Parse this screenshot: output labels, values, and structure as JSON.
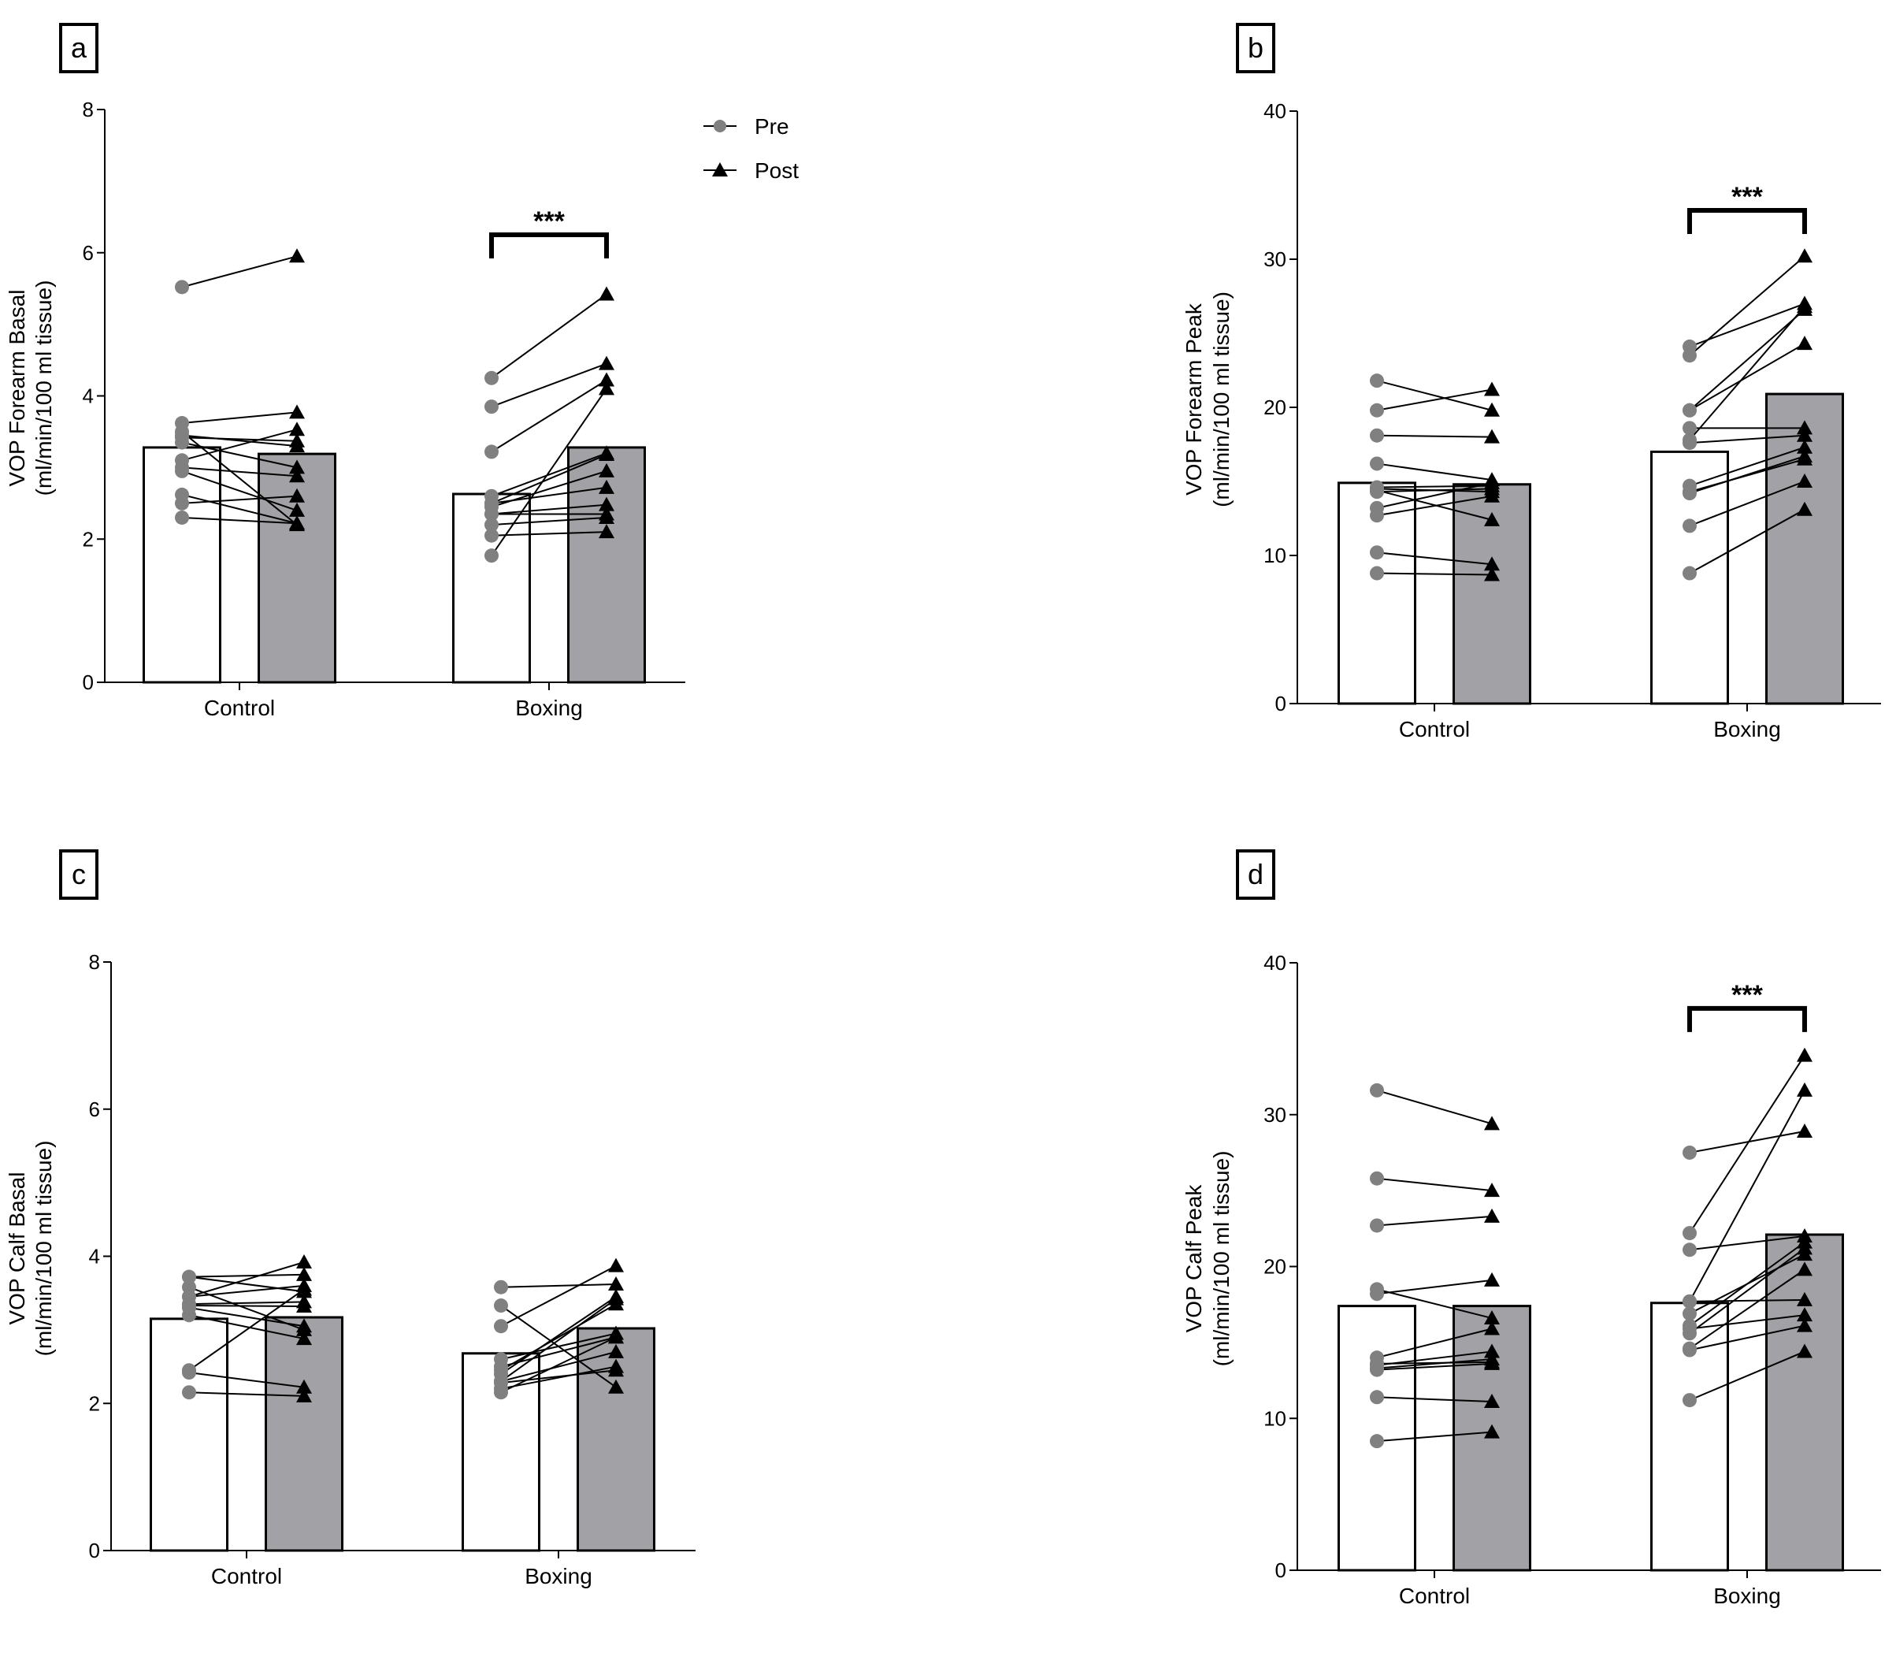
{
  "legend": {
    "placement": "top-right of panel a",
    "items": [
      {
        "label": "Pre",
        "marker": "circle",
        "color": "#808080"
      },
      {
        "label": "Post",
        "marker": "triangle",
        "color": "#000000"
      }
    ]
  },
  "colors": {
    "pre_bar": "#ffffff",
    "post_bar": "#a2a2a6",
    "pre_point": "#808080",
    "post_point": "#000000"
  },
  "chart_data": [
    {
      "panel": "a",
      "type": "bar",
      "ylabel": "VOP Forearm Basal",
      "ylabel2": "(ml/min/100 ml tissue)",
      "ylim": [
        0,
        8
      ],
      "yticks": [
        "0",
        "2",
        "4",
        "6",
        "8"
      ],
      "categories": [
        "Control",
        "Boxing"
      ],
      "bars": {
        "Pre": [
          3.28,
          2.63
        ],
        "Post": [
          3.19,
          3.28
        ]
      },
      "paired": [
        {
          "pre": [
            5.52,
            3.62,
            3.5,
            3.45,
            3.42,
            3.1,
            3.0,
            2.62,
            2.5,
            2.3,
            3.35,
            2.95
          ],
          "post": [
            5.95,
            3.77,
            2.2,
            3.3,
            3.37,
            3.53,
            2.88,
            2.22,
            2.6,
            2.22,
            3.0,
            2.4
          ]
        },
        {
          "pre": [
            4.25,
            3.85,
            3.22,
            2.6,
            2.5,
            2.45,
            2.35,
            2.35,
            2.2,
            2.05,
            1.77,
            2.5
          ],
          "post": [
            5.42,
            4.45,
            4.22,
            3.2,
            3.18,
            2.95,
            2.48,
            2.35,
            2.3,
            2.1,
            4.1,
            2.72
          ]
        }
      ],
      "significance": [
        {
          "category": "Boxing",
          "label": "***",
          "y": 6.25
        }
      ]
    },
    {
      "panel": "b",
      "type": "bar",
      "ylabel": "VOP Forearm Peak",
      "ylabel2": "(ml/min/100 ml tissue)",
      "ylim": [
        0,
        40
      ],
      "yticks": [
        "0",
        "10",
        "20",
        "30",
        "40"
      ],
      "categories": [
        "Control",
        "Boxing"
      ],
      "bars": {
        "Pre": [
          14.9,
          17.0
        ],
        "Post": [
          14.8,
          20.9
        ]
      },
      "paired": [
        {
          "pre": [
            21.8,
            19.8,
            18.1,
            16.2,
            14.6,
            14.4,
            13.2,
            12.7,
            10.2,
            8.8,
            14.5,
            14.3
          ],
          "post": [
            19.8,
            21.2,
            18.0,
            15.1,
            14.7,
            12.4,
            14.9,
            14.0,
            9.4,
            8.7,
            14.3,
            14.5
          ]
        },
        {
          "pre": [
            24.1,
            23.5,
            19.8,
            19.8,
            18.6,
            17.8,
            17.6,
            14.7,
            14.2,
            12.0,
            8.8,
            14.3
          ],
          "post": [
            27.0,
            30.2,
            26.6,
            24.3,
            18.6,
            26.8,
            18.1,
            17.3,
            16.7,
            15.0,
            13.1,
            16.5
          ]
        }
      ],
      "significance": [
        {
          "category": "Boxing",
          "label": "***",
          "y": 33.3
        }
      ]
    },
    {
      "panel": "c",
      "type": "bar",
      "ylabel": "VOP Calf Basal",
      "ylabel2": "(ml/min/100 ml tissue)",
      "ylim": [
        0,
        8
      ],
      "yticks": [
        "0",
        "2",
        "4",
        "6",
        "8"
      ],
      "categories": [
        "Control",
        "Boxing"
      ],
      "bars": {
        "Pre": [
          3.15,
          2.68
        ],
        "Post": [
          3.17,
          3.02
        ]
      },
      "paired": [
        {
          "pre": [
            3.72,
            3.72,
            3.58,
            3.45,
            3.35,
            3.33,
            3.2,
            2.45,
            2.42,
            2.15,
            3.3,
            3.45
          ],
          "post": [
            3.75,
            3.52,
            3.0,
            3.92,
            3.38,
            3.32,
            2.88,
            3.55,
            2.22,
            2.1,
            3.05,
            3.6
          ]
        },
        {
          "pre": [
            3.58,
            3.33,
            3.05,
            2.6,
            2.5,
            2.45,
            2.4,
            2.3,
            2.28,
            2.2,
            2.15,
            2.3
          ],
          "post": [
            3.62,
            2.22,
            3.87,
            2.95,
            2.9,
            3.35,
            3.45,
            2.7,
            2.45,
            2.5,
            2.9,
            3.42
          ]
        }
      ],
      "significance": []
    },
    {
      "panel": "d",
      "type": "bar",
      "ylabel": "VOP Calf Peak",
      "ylabel2": "(ml/min/100 ml tissue)",
      "ylim": [
        0,
        40
      ],
      "yticks": [
        "0",
        "10",
        "20",
        "30",
        "40"
      ],
      "categories": [
        "Control",
        "Boxing"
      ],
      "bars": {
        "Pre": [
          17.4,
          17.6
        ],
        "Post": [
          17.4,
          22.1
        ]
      },
      "paired": [
        {
          "pre": [
            31.6,
            25.8,
            22.7,
            18.5,
            18.2,
            14.0,
            13.5,
            13.3,
            13.2,
            11.4,
            8.5,
            13.6
          ],
          "post": [
            29.4,
            25.0,
            23.3,
            16.6,
            19.1,
            15.9,
            14.4,
            13.9,
            13.6,
            11.1,
            9.1,
            13.7
          ]
        },
        {
          "pre": [
            27.5,
            22.2,
            21.1,
            17.7,
            17.7,
            16.9,
            16.1,
            15.9,
            15.6,
            14.6,
            14.5,
            11.2
          ],
          "post": [
            28.9,
            33.9,
            22.0,
            31.6,
            17.8,
            20.8,
            21.6,
            16.8,
            21.2,
            19.8,
            16.1,
            14.4
          ]
        }
      ],
      "significance": [
        {
          "category": "Boxing",
          "label": "***",
          "y": 37.0
        }
      ]
    }
  ]
}
